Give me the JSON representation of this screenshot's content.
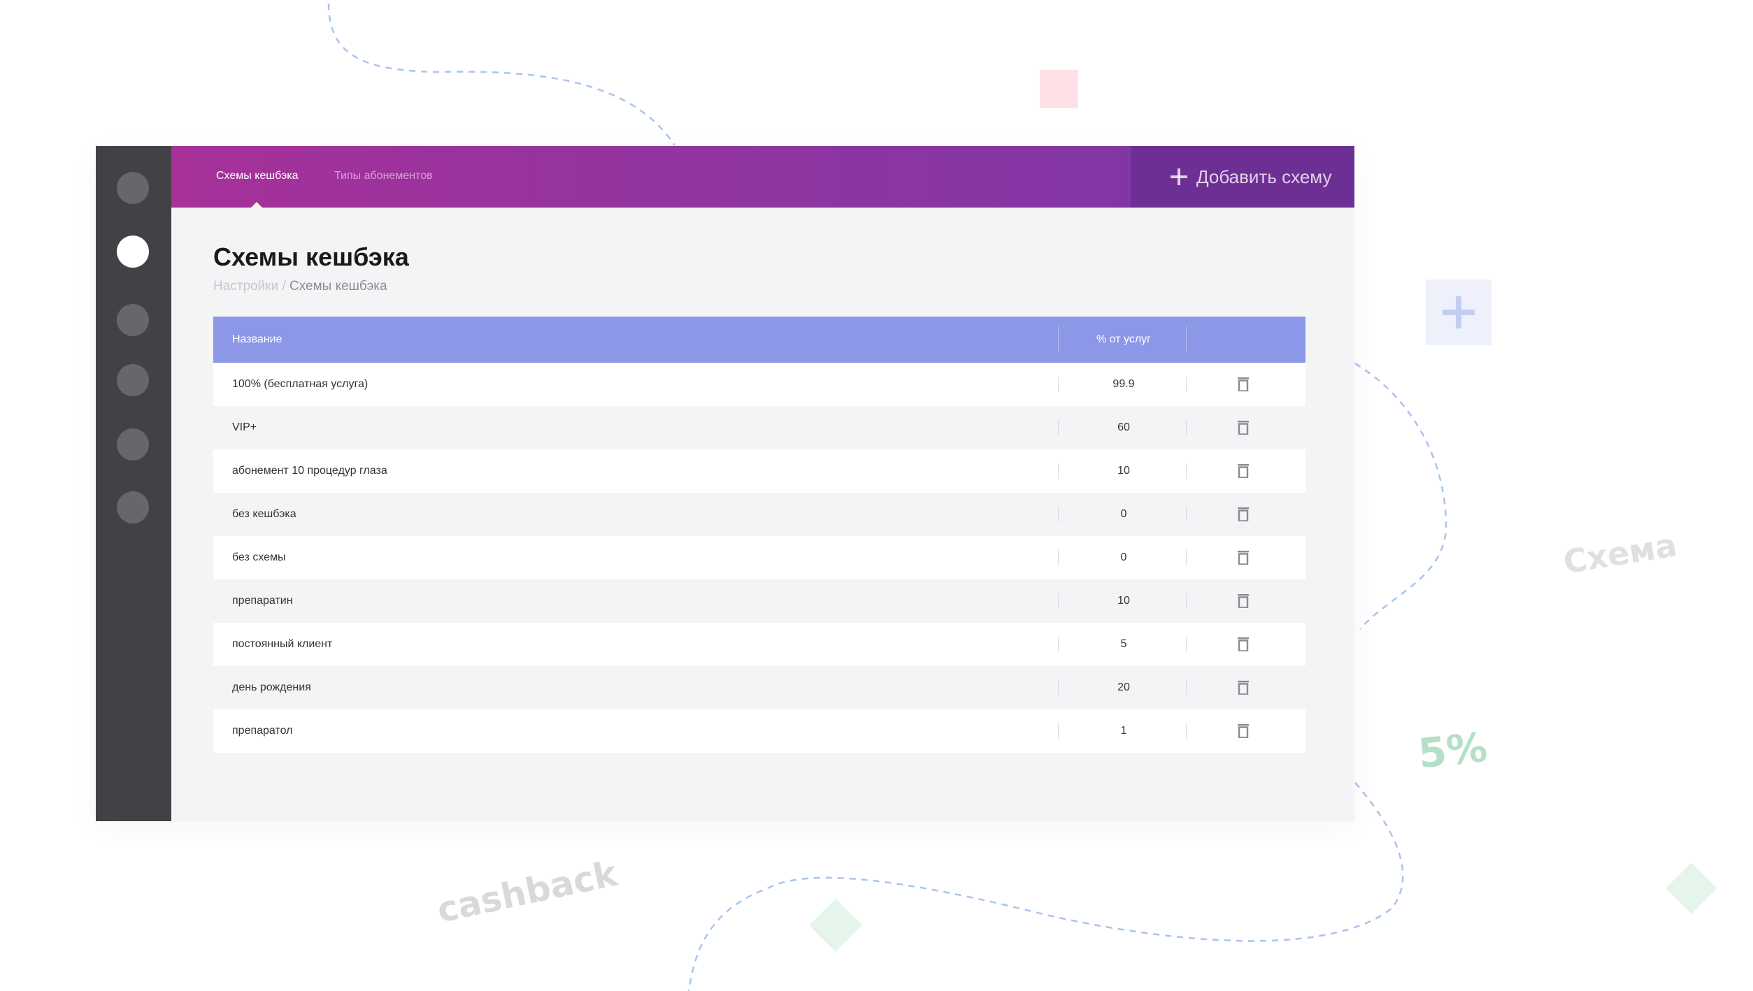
{
  "topbar": {
    "tabs": [
      {
        "label": "Схемы кешбэка",
        "active": true
      },
      {
        "label": "Типы абонементов",
        "active": false
      }
    ],
    "add_button_label": "Добавить схему",
    "add_button_icon": "plus-icon"
  },
  "sidebar": {
    "items": [
      {
        "icon": "nav-dot",
        "active": false
      },
      {
        "icon": "nav-dot",
        "active": true
      },
      {
        "icon": "nav-dot",
        "active": false
      },
      {
        "icon": "nav-dot",
        "active": false
      },
      {
        "icon": "nav-dot",
        "active": false
      },
      {
        "icon": "nav-dot",
        "active": false
      }
    ]
  },
  "page": {
    "title": "Схемы кешбэка",
    "breadcrumb_root": "Настройки",
    "breadcrumb_sep": " / ",
    "breadcrumb_current": "Схемы кешбэка"
  },
  "table": {
    "columns": {
      "name": "Название",
      "percent": "% от услуг"
    },
    "rows": [
      {
        "name": "100% (бесплатная услуга)",
        "percent": "99.9"
      },
      {
        "name": "VIP+",
        "percent": "60"
      },
      {
        "name": "абонемент 10 процедур глаза",
        "percent": "10"
      },
      {
        "name": "без кешбэка",
        "percent": "0"
      },
      {
        "name": "без схемы",
        "percent": "0"
      },
      {
        "name": "препаратин",
        "percent": "10"
      },
      {
        "name": "постоянный клиент",
        "percent": "5"
      },
      {
        "name": "день рождения",
        "percent": "20"
      },
      {
        "name": "препаратол",
        "percent": "1"
      }
    ],
    "row_action_icon": "trash-icon"
  },
  "decorations": {
    "cashback": "cashback",
    "schema": "Схема",
    "percent": "5%"
  },
  "colors": {
    "topbar_start": "#a63199",
    "topbar_end": "#7a37a6",
    "table_header": "#8d97e8",
    "sidebar": "#434146"
  }
}
